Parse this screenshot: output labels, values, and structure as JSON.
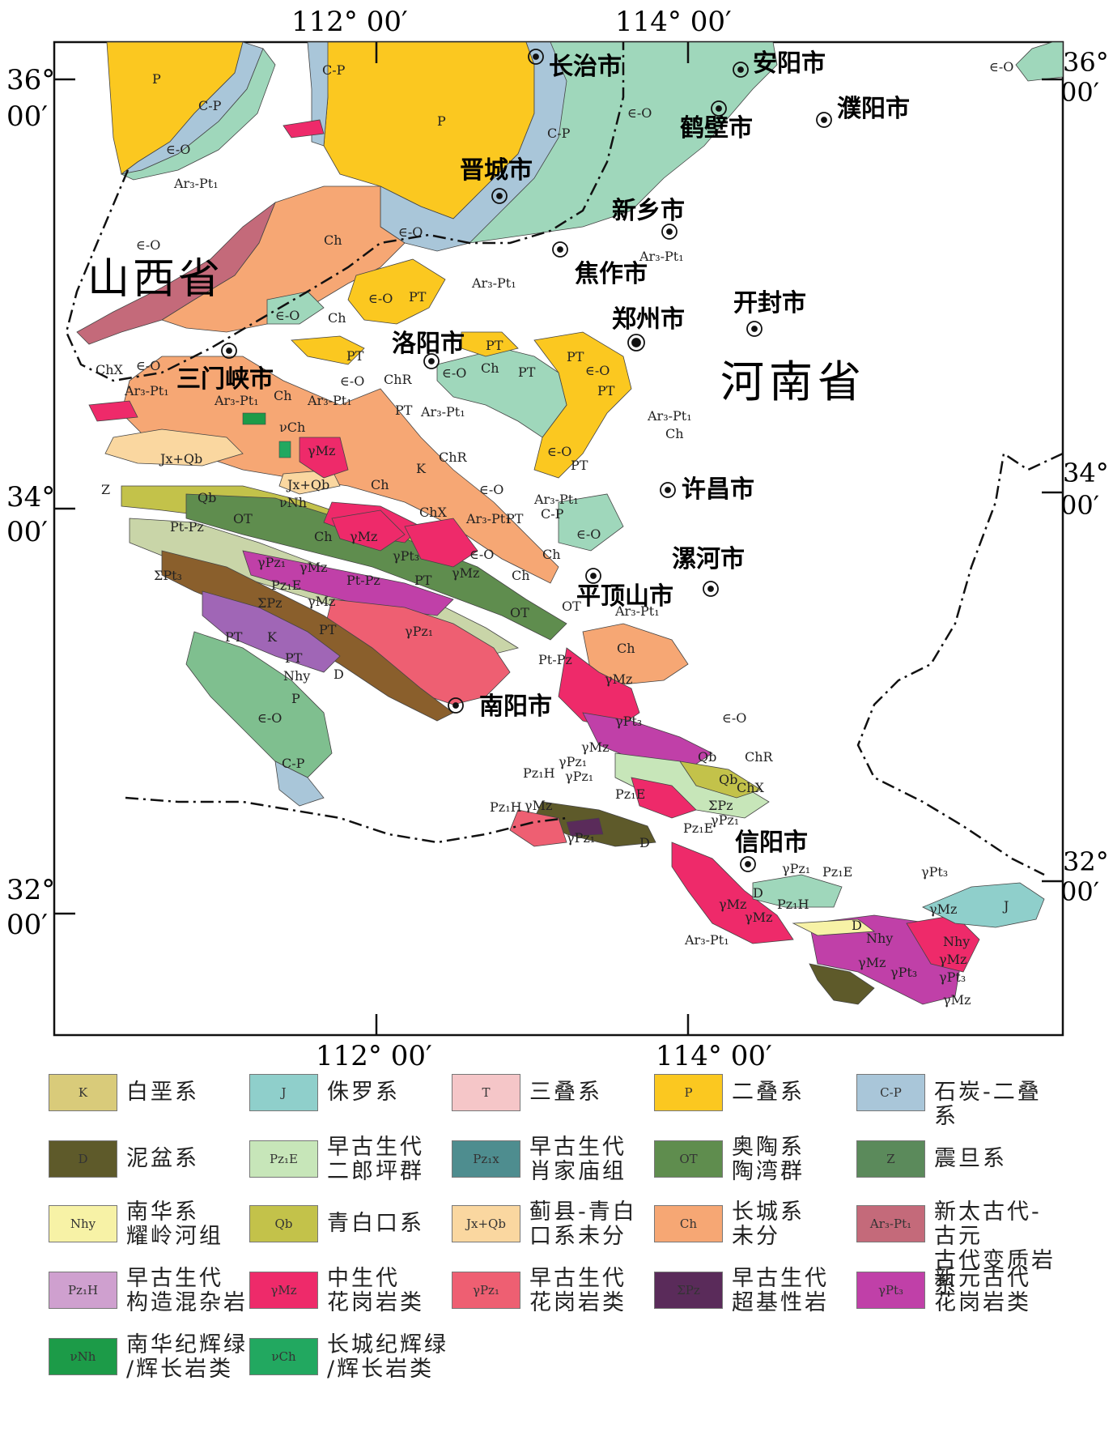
{
  "map": {
    "lon_labels": [
      "112° 00′",
      "114° 00′"
    ],
    "lat_labels": [
      {
        "deg": "36°",
        "min": "00′"
      },
      {
        "deg": "34°",
        "min": "00′"
      },
      {
        "deg": "32°",
        "min": "00′"
      }
    ],
    "provinces": [
      "山西省",
      "河南省"
    ],
    "cities": [
      "长治市",
      "安阳市",
      "濮阳市",
      "鹤壁市",
      "晋城市",
      "新乡市",
      "焦作市",
      "开封市",
      "郑州市",
      "洛阳市",
      "三门峡市",
      "许昌市",
      "漯河市",
      "平顶山市",
      "南阳市",
      "信阳市"
    ],
    "unit_labels": {
      "p": "P",
      "cp": "C-P",
      "eo": "∈-O",
      "ch": "Ch",
      "pt": "PT",
      "arpt": "Ar₃-Pt₁",
      "chx": "ChX",
      "chr": "ChR",
      "jxqb": "Jx+Qb",
      "qb": "Qb",
      "ot": "OT",
      "ptpz": "Pt-Pz",
      "gmz": "γMz",
      "gpz": "γPz₁",
      "gpt": "γPt₃",
      "k": "K",
      "d": "D",
      "j": "J",
      "z": "Z",
      "nhy": "Nhy",
      "pze": "Pz₁E",
      "pzh": "Pz₁H",
      "spt": "ΣPt₃",
      "spz": "ΣPz",
      "vch": "νCh",
      "vnh": "νNh",
      "t": "T"
    }
  },
  "legend": [
    {
      "code": "K",
      "label": "白垩系",
      "color": "#d9cb7a"
    },
    {
      "code": "J",
      "label": "侏罗系",
      "color": "#8fcfcb"
    },
    {
      "code": "T",
      "label": "三叠系",
      "color": "#f5c6c8"
    },
    {
      "code": "P",
      "label": "二叠系",
      "color": "#fbc820"
    },
    {
      "code": "C-P",
      "label": "石炭-二叠系",
      "color": "#a9c6d9"
    },
    {
      "code": "D",
      "label": "泥盆系",
      "color": "#5e5a2a"
    },
    {
      "code": "Pz₁E",
      "label": "早古生代\n二郎坪群",
      "color": "#c7e6b9"
    },
    {
      "code": "Pz₁x",
      "label": "早古生代\n肖家庙组",
      "color": "#4e8d8f"
    },
    {
      "code": "OT",
      "label": "奥陶系\n陶湾群",
      "color": "#5f8d4e"
    },
    {
      "code": "Z",
      "label": "震旦系",
      "color": "#5b8a5b"
    },
    {
      "code": "Nhy",
      "label": "南华系\n耀岭河组",
      "color": "#f7f2a6"
    },
    {
      "code": "Qb",
      "label": "青白口系",
      "color": "#c3c24a"
    },
    {
      "code": "Jx+Qb",
      "label": "蓟县-青白\n口系未分",
      "color": "#fad7a0"
    },
    {
      "code": "Ch",
      "label": "长城系\n未分",
      "color": "#f6a774"
    },
    {
      "code": "Ar₃-Pt₁",
      "label": "新太古代-古元\n古代变质岩系",
      "color": "#c46a7a"
    },
    {
      "code": "Pz₁H",
      "label": "早古生代\n构造混杂岩",
      "color": "#cfa0cf"
    },
    {
      "code": "γMz",
      "label": "中生代\n花岗岩类",
      "color": "#ee2a6a"
    },
    {
      "code": "γPz₁",
      "label": "早古生代\n花岗岩类",
      "color": "#ee5f72"
    },
    {
      "code": "ΣPz",
      "label": "早古生代\n超基性岩",
      "color": "#5a2b5a"
    },
    {
      "code": "γPt₃",
      "label": "新元古代\n花岗岩类",
      "color": "#c040a8"
    },
    {
      "code": "νNh",
      "label": "南华纪辉绿\n/辉长岩类",
      "color": "#1c9b48"
    },
    {
      "code": "νCh",
      "label": "长城纪辉绿\n/辉长岩类",
      "color": "#22a860"
    }
  ]
}
